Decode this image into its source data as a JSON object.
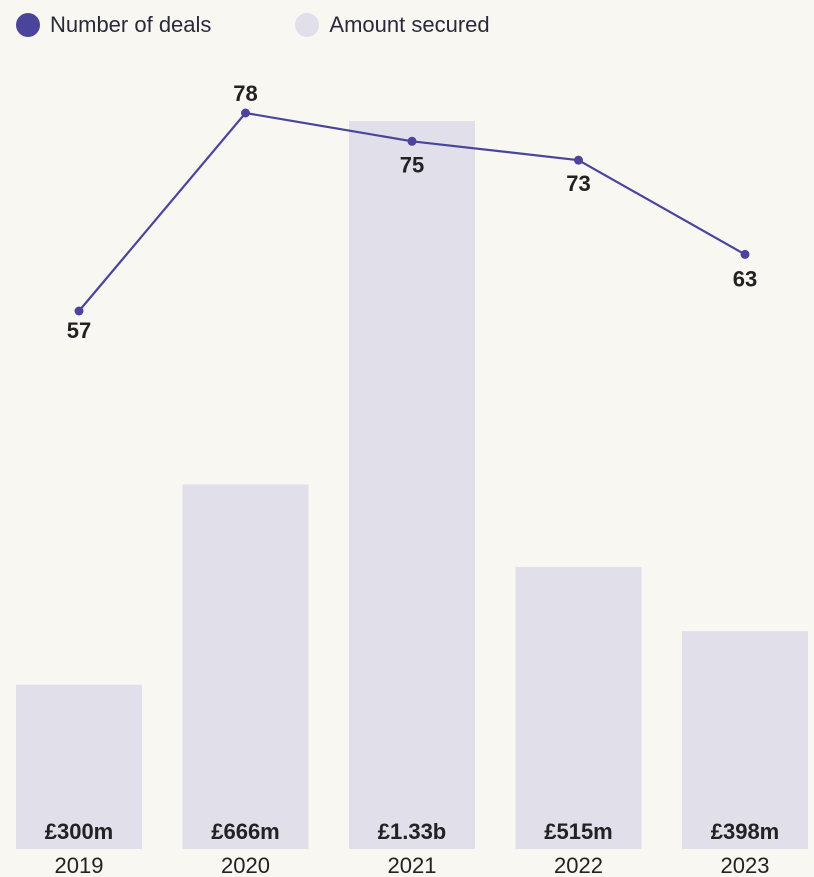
{
  "legend": {
    "deals_label": "Number of deals",
    "amount_label": "Amount secured"
  },
  "colors": {
    "background": "#f9f7f2",
    "bar": "#e0dfea",
    "line": "#4a449a",
    "text": "#222222"
  },
  "chart_data": {
    "type": "bar",
    "categories": [
      "2019",
      "2020",
      "2021",
      "2022",
      "2023"
    ],
    "series": [
      {
        "name": "Amount secured",
        "type": "bar",
        "values": [
          300,
          666,
          1330,
          515,
          398
        ],
        "labels": [
          "£300m",
          "£666m",
          "£1.33b",
          "£515m",
          "£398m"
        ]
      },
      {
        "name": "Number of deals",
        "type": "line",
        "values": [
          57,
          78,
          75,
          73,
          63
        ],
        "labels": [
          "57",
          "78",
          "75",
          "73",
          "63"
        ]
      }
    ],
    "legend_position": "top-left",
    "grid": false
  }
}
